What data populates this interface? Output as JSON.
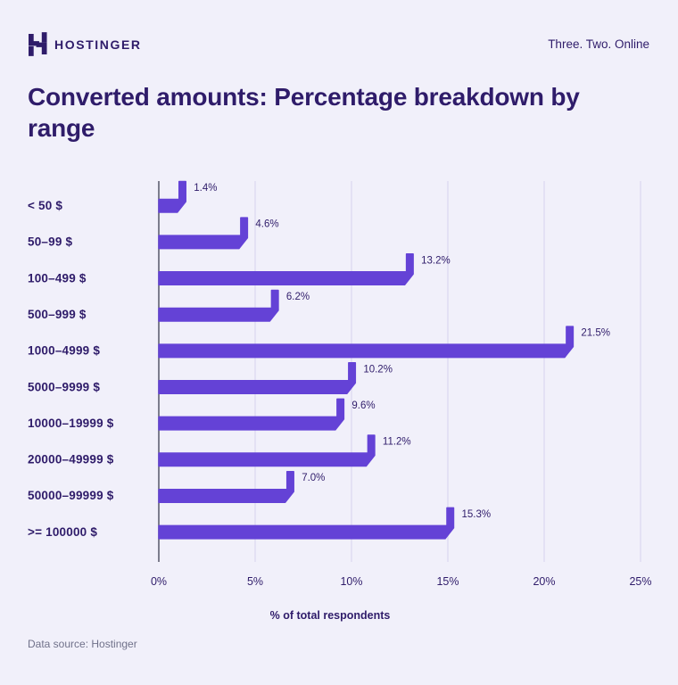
{
  "header": {
    "brand": "HOSTINGER",
    "logo_icon": "hostinger-h-logo",
    "tagline": "Three. Two. Online"
  },
  "title": "Converted amounts: Percentage breakdown by range",
  "footer": {
    "source": "Data source: Hostinger"
  },
  "colors": {
    "background": "#f1f0fa",
    "bar": "#6442d6",
    "grid": "#dad7ef",
    "axis": "#5f6070",
    "text_dark": "#2f1c6a",
    "text_muted": "#70718a"
  },
  "chart_data": {
    "type": "bar",
    "orientation": "horizontal",
    "title": "Converted amounts: Percentage breakdown by range",
    "categories": [
      "< 50 $",
      "50–99 $",
      "100–499 $",
      "500–999 $",
      "1000–4999 $",
      "5000–9999 $",
      "10000–19999 $",
      "20000–49999 $",
      "50000–99999 $",
      ">= 100000 $"
    ],
    "values": [
      1.4,
      4.6,
      13.2,
      6.2,
      21.5,
      10.2,
      9.6,
      11.2,
      7.0,
      15.3
    ],
    "value_labels": [
      "1.4%",
      "4.6%",
      "13.2%",
      "6.2%",
      "21.5%",
      "10.2%",
      "9.6%",
      "11.2%",
      "7.0%",
      "15.3%"
    ],
    "xlabel": "% of total respondents",
    "x_ticks": [
      "0%",
      "5%",
      "10%",
      "15%",
      "20%",
      "25%"
    ],
    "x_tick_values": [
      0,
      5,
      10,
      15,
      20,
      25
    ],
    "xlim": [
      0,
      25
    ],
    "grid": true,
    "legend": false
  }
}
